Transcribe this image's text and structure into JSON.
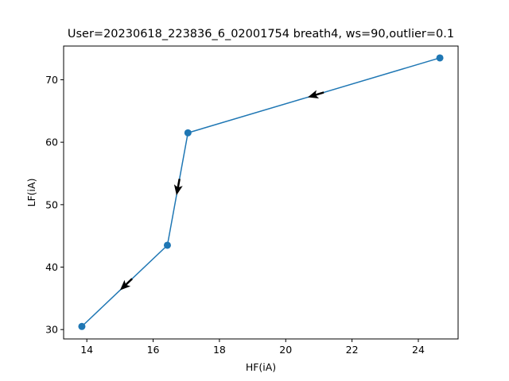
{
  "chart_data": {
    "type": "line",
    "title": "User=20230618_223836_6_02001754 breath4, ws=90,outlier=0.1",
    "xlabel": "HF(iA)",
    "ylabel": "LF(iA)",
    "xlim": [
      13.3,
      25.2
    ],
    "ylim": [
      28.5,
      75.4
    ],
    "xticks": [
      14,
      16,
      18,
      20,
      22,
      24
    ],
    "yticks": [
      30,
      40,
      50,
      60,
      70
    ],
    "grid": false,
    "legend": "none",
    "series": [
      {
        "x": [
          24.65,
          17.05,
          16.43,
          13.85
        ],
        "y": [
          73.5,
          61.5,
          43.5,
          30.5
        ],
        "color": "#1f77b4",
        "marker": "circle",
        "arrows": "direction-of-travel",
        "arrow_color": "#000000"
      }
    ]
  }
}
